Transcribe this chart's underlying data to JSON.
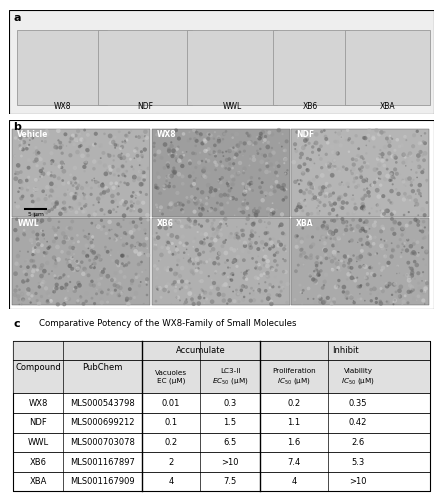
{
  "panel_a_label": "a",
  "panel_b_label": "b",
  "panel_c_label": "c",
  "table_title": "Comparative Potency of the WX8-Family of Small Molecules",
  "accumulate_header": "Accumulate",
  "inhibit_header": "Inhibit",
  "compounds": [
    "WX8",
    "NDF",
    "WWL",
    "XB6",
    "XBA"
  ],
  "rows": [
    [
      "WX8",
      "MLS000543798",
      "0.01",
      "0.3",
      "0.2",
      "0.35"
    ],
    [
      "NDF",
      "MLS000699212",
      "0.1",
      "1.5",
      "1.1",
      "0.42"
    ],
    [
      "WWL",
      "MLS000703078",
      "0.2",
      "6.5",
      "1.6",
      "2.6"
    ],
    [
      "XB6",
      "MLS001167897",
      "2",
      ">10",
      "7.4",
      "5.3"
    ],
    [
      "XBA",
      "MLS001167909",
      "4",
      "7.5",
      "4",
      ">10"
    ]
  ],
  "bg_color": "#ffffff",
  "table_header_bg": "#e0e0e0",
  "panel_a_bg": "#eeeeee",
  "cell_labels": [
    "Vehicle",
    "WX8",
    "NDF",
    "WWL",
    "XB6",
    "XBA"
  ],
  "img_colors": [
    "#b2b2b2",
    "#9e9e9e",
    "#b5b5b5",
    "#a8a8a8",
    "#b0b0b0",
    "#aaaaaa"
  ]
}
